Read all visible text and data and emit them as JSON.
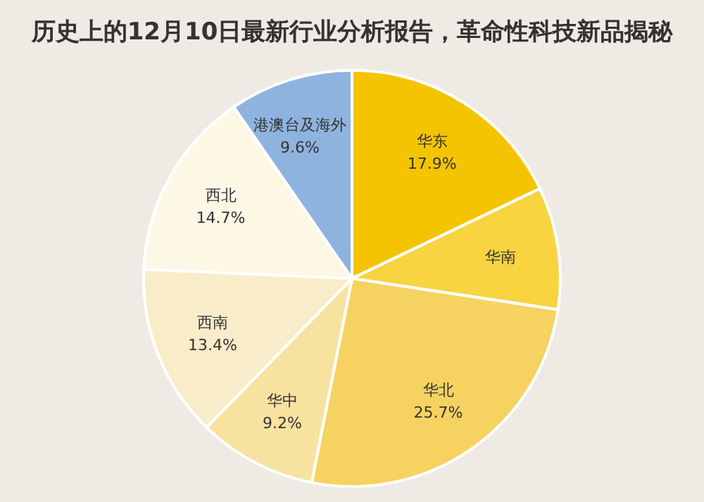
{
  "chart_data": {
    "type": "pie",
    "title": "历史上的12月10日最新行业分析报告，革命性科技新品揭秘",
    "categories": [
      "华东",
      "华南",
      "华北",
      "华中",
      "西南",
      "西北",
      "港澳台及海外"
    ],
    "values": [
      17.9,
      9.5,
      25.7,
      9.2,
      13.4,
      14.7,
      9.6
    ],
    "value_labels": [
      "17.9%",
      null,
      "25.7%",
      "9.2%",
      "13.4%",
      "14.7%",
      "9.6%"
    ],
    "colors": [
      "#f5c400",
      "#f7d440",
      "#f6d360",
      "#f8e2a0",
      "#f9ecc8",
      "#fdf7e6",
      "#8fb3df"
    ]
  }
}
